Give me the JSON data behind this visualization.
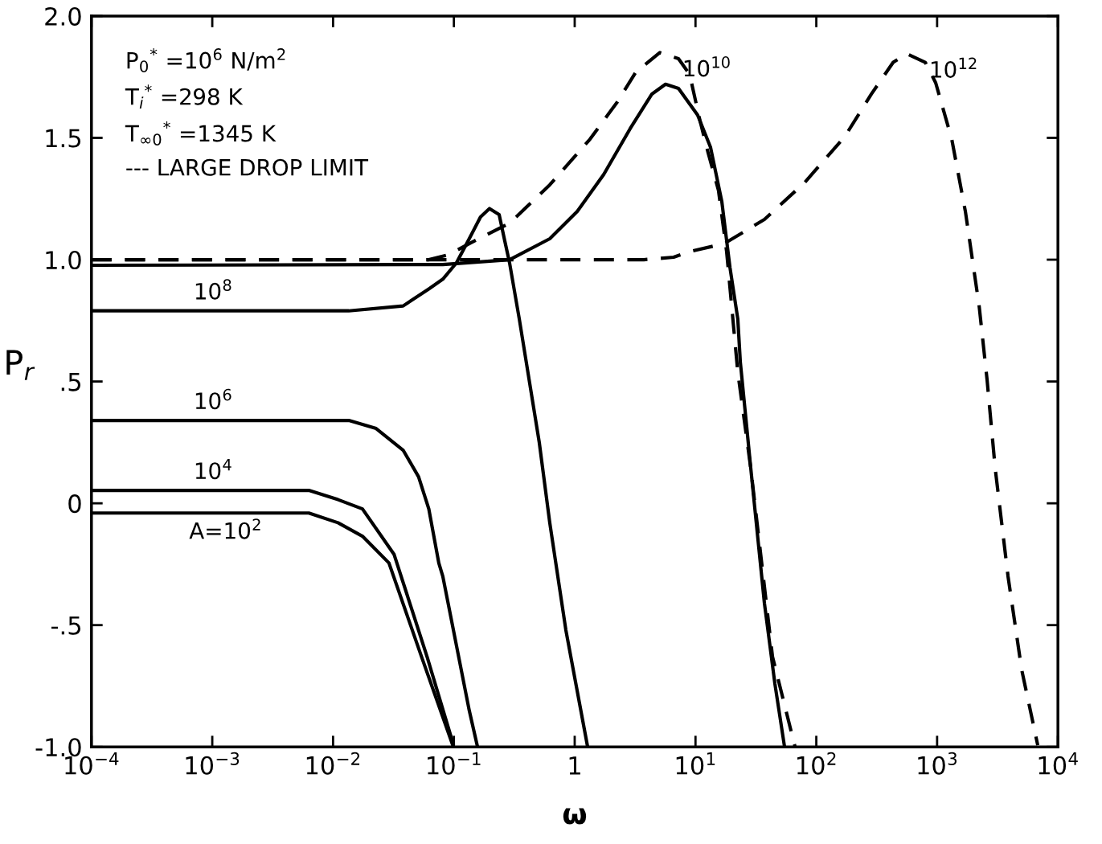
{
  "chart_data": {
    "type": "line",
    "xlabel": "ω",
    "ylabel": "P$_{r}$",
    "log": "x",
    "xlim": [
      0.0001,
      10000.0
    ],
    "xticks": [
      {
        "value": 0.0001,
        "label": "10$^{−4}$"
      },
      {
        "value": 0.001,
        "label": "10$^{−3}$"
      },
      {
        "value": 0.01,
        "label": "10$^{−2}$"
      },
      {
        "value": 0.1,
        "label": "10$^{−1}$"
      },
      {
        "value": 1,
        "label": "1"
      },
      {
        "value": 10,
        "label": "10$^{1}$"
      },
      {
        "value": 100,
        "label": "10$^{2}$"
      },
      {
        "value": 1000,
        "label": "10$^{3}$"
      },
      {
        "value": 10000,
        "label": "10$^{4}$"
      }
    ],
    "ylim": [
      -1.0,
      2.0
    ],
    "yticks": [
      {
        "value": -1.0,
        "label": "-1.0"
      },
      {
        "value": -0.5,
        "label": "-.5"
      },
      {
        "value": 0,
        "label": "0"
      },
      {
        "value": 0.5,
        "label": ".5"
      },
      {
        "value": 1.0,
        "label": "1.0"
      },
      {
        "value": 1.5,
        "label": "1.5"
      },
      {
        "value": 2.0,
        "label": "2.0"
      }
    ],
    "grid": false,
    "series": [
      {
        "name": "A=10$^{2}$",
        "color": "#000000",
        "line_style": "solid",
        "x": [
          0.0001,
          0.0063,
          0.011,
          0.0175,
          0.029,
          0.054,
          0.099
        ],
        "values": [
          -0.04,
          -0.04,
          -0.08,
          -0.135,
          -0.245,
          -0.63,
          -1.0
        ]
      },
      {
        "name": "10$^{4}$",
        "color": "#000000",
        "line_style": "solid",
        "x": [
          0.0001,
          0.0063,
          0.011,
          0.0175,
          0.032,
          0.06,
          0.099
        ],
        "values": [
          0.053,
          0.053,
          0.015,
          -0.023,
          -0.21,
          -0.63,
          -0.99
        ]
      },
      {
        "name": "10$^{6}$",
        "color": "#000000",
        "line_style": "solid",
        "x": [
          0.0001,
          0.0135,
          0.0227,
          0.038,
          0.051,
          0.062,
          0.075,
          0.081,
          0.134,
          0.157
        ],
        "values": [
          0.34,
          0.34,
          0.307,
          0.218,
          0.109,
          -0.023,
          -0.245,
          -0.3,
          -0.85,
          -1.0
        ]
      },
      {
        "name": "10$^{8}$",
        "color": "#000000",
        "line_style": "solid",
        "x": [
          0.0001,
          0.0135,
          0.038,
          0.062,
          0.081,
          0.105,
          0.134,
          0.166,
          0.197,
          0.237,
          0.264,
          0.289,
          0.348,
          0.509,
          0.622,
          0.845,
          1.28
        ],
        "values": [
          0.79,
          0.79,
          0.81,
          0.88,
          0.92,
          0.987,
          1.086,
          1.175,
          1.21,
          1.185,
          1.076,
          0.987,
          0.756,
          0.25,
          -0.08,
          -0.52,
          -1.0
        ]
      },
      {
        "color": "#000000",
        "line_style": "solid",
        "x": [
          0.0001,
          0.081,
          0.289,
          0.622,
          1.05,
          1.74,
          2.88,
          4.36,
          5.65,
          7.23,
          10.4,
          13.3,
          16.5,
          19.3,
          22.4,
          23.5,
          28.7,
          37.2,
          45.4,
          54.6
        ],
        "values": [
          0.977,
          0.98,
          1.0,
          1.086,
          1.198,
          1.35,
          1.538,
          1.68,
          1.72,
          1.703,
          1.594,
          1.462,
          1.24,
          0.967,
          0.756,
          0.58,
          0.142,
          -0.41,
          -0.74,
          -1.0
        ]
      },
      {
        "name": "10$^{10}$",
        "color": "#000000",
        "line_style": "dashed",
        "x": [
          0.0001,
          0.062,
          0.09,
          0.134,
          0.289,
          0.622,
          1.34,
          2.25,
          3.21,
          5.07,
          7.23,
          8.95,
          10.9,
          12.7,
          15.5,
          18.1,
          22.4,
          28.7,
          43.4,
          66.7
        ],
        "values": [
          1.0,
          1.0,
          1.02,
          1.066,
          1.15,
          1.307,
          1.495,
          1.647,
          1.77,
          1.85,
          1.825,
          1.76,
          1.57,
          1.44,
          1.284,
          1.033,
          0.538,
          0.142,
          -0.63,
          -1.0
        ]
      },
      {
        "name": "10$^{12}$",
        "color": "#000000",
        "line_style": "dashed",
        "x": [
          0.0001,
          3.74,
          6.59,
          8.95,
          17.3,
          37.2,
          80.2,
          172,
          286,
          433,
          561,
          798,
          973,
          1321,
          1714,
          2228,
          2594,
          3027,
          3864,
          5012,
          6808
        ],
        "values": [
          1.0,
          1.0,
          1.01,
          1.033,
          1.066,
          1.165,
          1.317,
          1.505,
          1.68,
          1.81,
          1.845,
          1.81,
          1.726,
          1.495,
          1.198,
          0.81,
          0.505,
          0.142,
          -0.3,
          -0.683,
          -0.993
        ]
      }
    ],
    "annotations": [
      "P$_{0}$$^{*}$ =10$^{6}$ N/m$^{2}$",
      "T$_{i}$$^{*}$ =298 K",
      "T$_{∞0}$$^{*}$ =1345 K",
      "--- LARGE DROP LIMIT"
    ]
  }
}
